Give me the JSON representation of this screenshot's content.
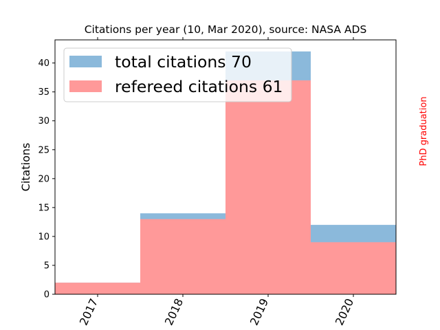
{
  "chart_data": {
    "type": "bar",
    "title": "Citations per year (10, Mar 2020), source: NASA ADS",
    "ylabel": "Citations",
    "xlabel": "",
    "categories": [
      "2017",
      "2018",
      "2019",
      "2020"
    ],
    "series": [
      {
        "name": "total citations 70",
        "values": [
          2,
          14,
          42,
          12
        ],
        "color": "#8bb9db"
      },
      {
        "name": "refereed citations 61",
        "values": [
          2,
          13,
          37,
          9
        ],
        "color": "#ff9999"
      }
    ],
    "ylim": [
      0,
      44
    ],
    "yticks": [
      0,
      5,
      10,
      15,
      20,
      25,
      30,
      35,
      40
    ],
    "legend_position": "top-left",
    "grid": false,
    "annotation": {
      "text": "PhD graduation",
      "color": "#ff0000"
    }
  }
}
